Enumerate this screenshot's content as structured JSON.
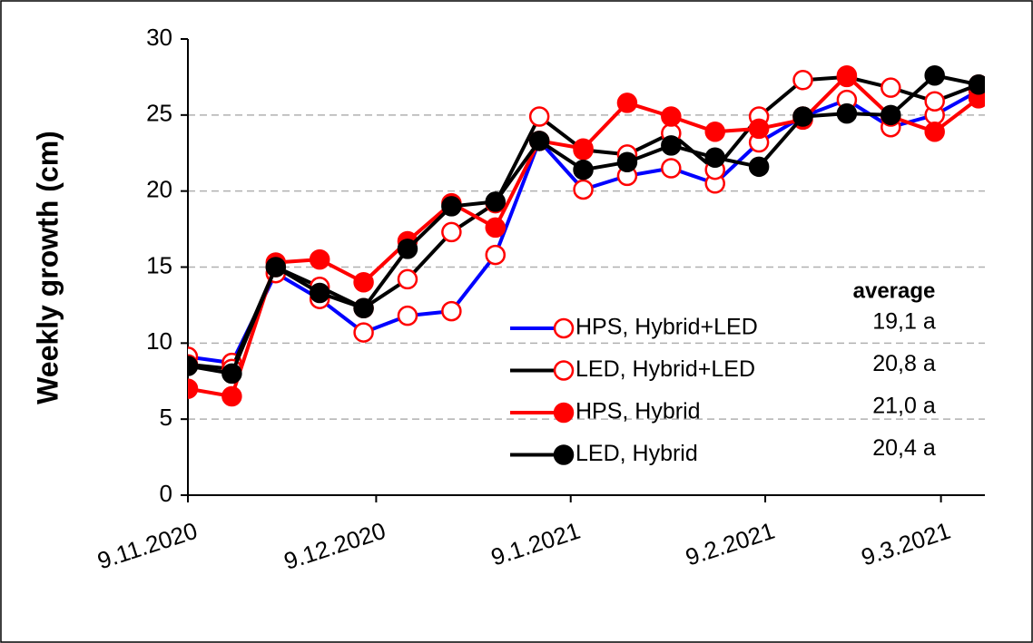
{
  "chart_data": {
    "type": "line",
    "y_label": "Weekly growth (cm)",
    "x": [
      "2020-11-09",
      "2020-11-16",
      "2020-11-23",
      "2020-11-30",
      "2020-12-07",
      "2020-12-14",
      "2020-12-21",
      "2020-12-28",
      "2021-01-04",
      "2021-01-11",
      "2021-01-18",
      "2021-01-25",
      "2021-02-01",
      "2021-02-08",
      "2021-02-15",
      "2021-02-22",
      "2021-03-01",
      "2021-03-08",
      "2021-03-15"
    ],
    "xlim": [
      "2020-11-09",
      "2021-03-16"
    ],
    "xticks": [
      {
        "value": "2020-11-09",
        "label": "9.11.2020"
      },
      {
        "value": "2020-12-09",
        "label": "9.12.2020"
      },
      {
        "value": "2021-01-09",
        "label": "9.1.2021"
      },
      {
        "value": "2021-02-09",
        "label": "9.2.2021"
      },
      {
        "value": "2021-03-09",
        "label": "9.3.2021"
      }
    ],
    "ylim": [
      0,
      30
    ],
    "yticks": [
      0,
      5,
      10,
      15,
      20,
      25,
      30
    ],
    "grid": true,
    "legend_title": "average",
    "series": [
      {
        "name": "HPS, Hybrid+LED",
        "color": "#0000ff",
        "marker_color": "#ff0000",
        "marker_fill": "#ffffff",
        "average_label": "19,1 a",
        "values": [
          9.1,
          8.7,
          14.6,
          12.9,
          10.7,
          11.8,
          12.1,
          15.8,
          23.3,
          20.1,
          21.0,
          21.5,
          20.5,
          23.2,
          24.9,
          26.0,
          24.2,
          25.0,
          26.6
        ]
      },
      {
        "name": "LED, Hybrid+LED",
        "color": "#000000",
        "marker_color": "#ff0000",
        "marker_fill": "#ffffff",
        "average_label": "20,8 a",
        "values": [
          8.6,
          8.3,
          15.0,
          13.7,
          12.3,
          14.2,
          17.3,
          19.2,
          24.9,
          22.7,
          22.4,
          23.8,
          21.4,
          24.9,
          27.3,
          27.5,
          26.8,
          25.9,
          27.0
        ]
      },
      {
        "name": "HPS, Hybrid",
        "color": "#ff0000",
        "marker_color": "#ff0000",
        "marker_fill": "#ff0000",
        "average_label": "21,0 a",
        "values": [
          7.0,
          6.5,
          15.3,
          15.5,
          14.0,
          16.7,
          19.2,
          17.6,
          23.3,
          22.8,
          25.8,
          24.9,
          23.9,
          24.1,
          24.7,
          27.6,
          24.9,
          23.9,
          26.1
        ]
      },
      {
        "name": "LED, Hybrid",
        "color": "#000000",
        "marker_color": "#000000",
        "marker_fill": "#000000",
        "average_label": "20,4 a",
        "values": [
          8.5,
          8.0,
          15.0,
          13.3,
          12.3,
          16.2,
          19.0,
          19.3,
          23.3,
          21.4,
          21.9,
          23.0,
          22.2,
          21.6,
          24.9,
          25.1,
          25.0,
          27.6,
          27.0
        ]
      }
    ]
  }
}
